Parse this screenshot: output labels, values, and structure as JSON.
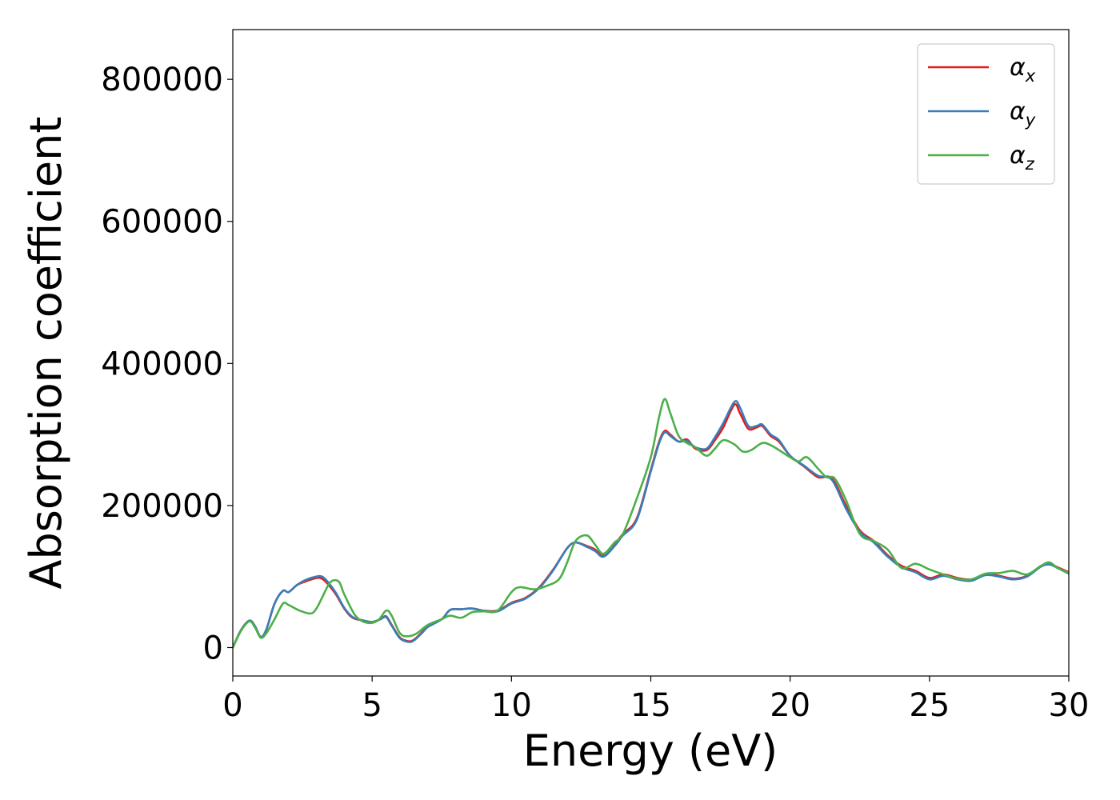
{
  "chart_data": {
    "type": "line",
    "title": "",
    "xlabel": "Energy (eV)",
    "ylabel": "Absorption coefficient",
    "xlim": [
      0,
      30
    ],
    "ylim": [
      -40000,
      870000
    ],
    "xticks": [
      0,
      5,
      10,
      15,
      20,
      25,
      30
    ],
    "yticks": [
      0,
      200000,
      400000,
      600000,
      800000
    ],
    "xtick_labels": [
      "0",
      "5",
      "10",
      "15",
      "20",
      "25",
      "30"
    ],
    "ytick_labels": [
      "0",
      "200000",
      "400000",
      "600000",
      "800000"
    ],
    "grid": false,
    "legend_position": "upper right",
    "series": [
      {
        "name": "αx",
        "base": "α",
        "sub": "x",
        "color": "#e41a1c",
        "x": [
          0,
          0.3,
          0.6,
          0.8,
          1.0,
          1.2,
          1.5,
          1.8,
          2.0,
          2.3,
          2.6,
          3.0,
          3.2,
          3.4,
          3.7,
          4.0,
          4.3,
          4.7,
          5.0,
          5.3,
          5.5,
          5.7,
          6.0,
          6.3,
          6.5,
          6.8,
          7.0,
          7.5,
          7.8,
          8.2,
          8.6,
          9.0,
          9.5,
          10.0,
          10.5,
          11.0,
          11.5,
          12.0,
          12.3,
          12.7,
          13.0,
          13.3,
          13.7,
          14.0,
          14.5,
          15.0,
          15.3,
          15.5,
          15.7,
          16.0,
          16.3,
          16.6,
          17.0,
          17.3,
          17.6,
          18.0,
          18.2,
          18.5,
          18.8,
          19.0,
          19.3,
          19.6,
          20.0,
          20.5,
          21.0,
          21.5,
          22.0,
          22.5,
          23.0,
          23.5,
          24.0,
          24.5,
          25.0,
          25.5,
          26.0,
          26.5,
          27.0,
          27.5,
          28.0,
          28.5,
          29.0,
          29.3,
          29.6,
          30.0
        ],
        "y": [
          0,
          25000,
          38000,
          30000,
          15000,
          25000,
          62000,
          80000,
          78000,
          88000,
          93000,
          98000,
          97000,
          90000,
          75000,
          55000,
          42000,
          38000,
          36000,
          40000,
          44000,
          32000,
          14000,
          9000,
          11000,
          22000,
          30000,
          40000,
          53000,
          54000,
          55000,
          52000,
          52000,
          63000,
          70000,
          85000,
          110000,
          140000,
          148000,
          143000,
          138000,
          129000,
          145000,
          160000,
          182000,
          250000,
          290000,
          305000,
          300000,
          290000,
          293000,
          280000,
          278000,
          292000,
          310000,
          342000,
          330000,
          308000,
          310000,
          312000,
          298000,
          290000,
          270000,
          255000,
          240000,
          238000,
          200000,
          165000,
          150000,
          130000,
          115000,
          108000,
          98000,
          103000,
          98000,
          96000,
          103000,
          101000,
          97000,
          101000,
          115000,
          118000,
          113000,
          106000
        ]
      },
      {
        "name": "αy",
        "base": "α",
        "sub": "y",
        "color": "#377eb8",
        "x": [
          0,
          0.3,
          0.6,
          0.8,
          1.0,
          1.2,
          1.5,
          1.8,
          2.0,
          2.3,
          2.6,
          3.0,
          3.2,
          3.4,
          3.7,
          4.0,
          4.3,
          4.7,
          5.0,
          5.3,
          5.5,
          5.7,
          6.0,
          6.3,
          6.5,
          6.8,
          7.0,
          7.5,
          7.8,
          8.2,
          8.6,
          9.0,
          9.5,
          10.0,
          10.5,
          11.0,
          11.5,
          12.0,
          12.3,
          12.7,
          13.0,
          13.3,
          13.7,
          14.0,
          14.5,
          15.0,
          15.3,
          15.5,
          15.7,
          16.0,
          16.3,
          16.6,
          17.0,
          17.3,
          17.6,
          18.0,
          18.2,
          18.5,
          18.8,
          19.0,
          19.3,
          19.6,
          20.0,
          20.5,
          21.0,
          21.5,
          22.0,
          22.5,
          23.0,
          23.5,
          24.0,
          24.5,
          25.0,
          25.5,
          26.0,
          26.5,
          27.0,
          27.5,
          28.0,
          28.5,
          29.0,
          29.3,
          29.6,
          30.0
        ],
        "y": [
          0,
          25000,
          38000,
          30000,
          15000,
          25000,
          62000,
          80000,
          78000,
          88000,
          95000,
          100000,
          100000,
          93000,
          77000,
          56000,
          43000,
          38000,
          36000,
          40000,
          43000,
          31000,
          13000,
          8000,
          10000,
          21000,
          29000,
          40000,
          53000,
          54000,
          55000,
          52000,
          51000,
          62000,
          69000,
          84000,
          109000,
          140000,
          148000,
          142000,
          136000,
          128000,
          143000,
          158000,
          180000,
          248000,
          288000,
          303000,
          298000,
          290000,
          291000,
          282000,
          280000,
          296000,
          316000,
          346000,
          338000,
          312000,
          312000,
          314000,
          300000,
          292000,
          270000,
          256000,
          242000,
          236000,
          196000,
          163000,
          148000,
          128000,
          113000,
          106000,
          96000,
          101000,
          96000,
          94000,
          102000,
          100000,
          96000,
          100000,
          114000,
          117000,
          112000,
          104000
        ]
      },
      {
        "name": "αz",
        "base": "α",
        "sub": "z",
        "color": "#4daf4a",
        "x": [
          0,
          0.3,
          0.6,
          0.8,
          1.0,
          1.2,
          1.5,
          1.8,
          2.0,
          2.4,
          2.8,
          3.0,
          3.2,
          3.5,
          3.8,
          4.0,
          4.4,
          4.8,
          5.2,
          5.5,
          5.7,
          6.0,
          6.3,
          6.6,
          7.0,
          7.5,
          7.8,
          8.2,
          8.6,
          9.0,
          9.5,
          10.0,
          10.3,
          10.8,
          11.2,
          11.7,
          12.0,
          12.3,
          12.7,
          13.0,
          13.3,
          13.7,
          14.0,
          14.5,
          15.0,
          15.3,
          15.5,
          15.7,
          16.0,
          16.3,
          16.6,
          17.0,
          17.3,
          17.6,
          18.0,
          18.3,
          18.6,
          19.0,
          19.3,
          19.6,
          20.0,
          20.3,
          20.6,
          21.0,
          21.3,
          21.6,
          22.0,
          22.5,
          23.0,
          23.5,
          24.0,
          24.5,
          25.0,
          25.5,
          26.0,
          26.5,
          27.0,
          27.5,
          28.0,
          28.5,
          29.0,
          29.3,
          29.6,
          30.0
        ],
        "y": [
          0,
          24000,
          37000,
          28000,
          14000,
          20000,
          40000,
          62000,
          60000,
          52000,
          48000,
          55000,
          70000,
          92000,
          93000,
          75000,
          45000,
          35000,
          38000,
          52000,
          45000,
          20000,
          16000,
          20000,
          32000,
          40000,
          45000,
          42000,
          50000,
          51000,
          52000,
          78000,
          85000,
          82000,
          86000,
          96000,
          120000,
          150000,
          158000,
          145000,
          132000,
          148000,
          160000,
          210000,
          268000,
          325000,
          350000,
          330000,
          298000,
          288000,
          282000,
          270000,
          280000,
          292000,
          286000,
          276000,
          278000,
          288000,
          285000,
          278000,
          268000,
          262000,
          268000,
          252000,
          240000,
          238000,
          208000,
          160000,
          150000,
          138000,
          112000,
          118000,
          110000,
          103000,
          97000,
          96000,
          104000,
          105000,
          108000,
          103000,
          115000,
          120000,
          112000,
          105000
        ]
      }
    ]
  }
}
